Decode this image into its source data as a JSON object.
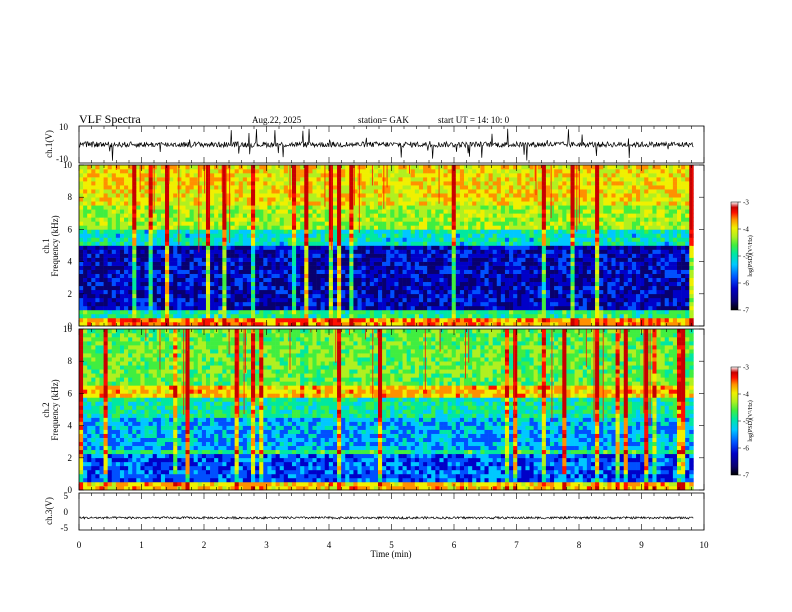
{
  "header": {
    "title": "VLF  Spectra",
    "date": "Aug.22, 2025",
    "station": "station= GAK",
    "start_ut": "start  UT  =    14: 10: 0"
  },
  "colors": {
    "colormap": [
      "#08006e",
      "#0000c8",
      "#0050ff",
      "#00c8ff",
      "#00e8a0",
      "#40ee40",
      "#b0f020",
      "#f0f000",
      "#ff9000",
      "#ff1000",
      "#c80000",
      "#ffffff"
    ],
    "trace": "#000000"
  },
  "chart_data": [
    {
      "type": "line",
      "name": "ch1-waveform",
      "ylabel": "ch.1(V)",
      "ylim": [
        -10,
        10
      ],
      "yticks": [
        "10",
        "-10"
      ],
      "xlim": [
        0,
        10
      ],
      "data_end_min": 9.83,
      "baseline": 0
    },
    {
      "type": "heatmap",
      "name": "ch1-spectrogram",
      "ylabel": "ch.1\nFrequency  (kHz)",
      "ylabel_lines": [
        "ch.1",
        "Frequency  (kHz)"
      ],
      "ylim": [
        0,
        10
      ],
      "yticks": [
        "0",
        "2",
        "4",
        "6",
        "8",
        "10"
      ],
      "xlim": [
        0,
        10
      ],
      "data_end_min": 9.83,
      "colorbar": {
        "label": "log(PSD)(V²/Hz)",
        "range": [
          -7,
          -3
        ],
        "ticks": [
          "-3",
          "-4",
          "-5",
          "-6",
          "-7"
        ]
      }
    },
    {
      "type": "heatmap",
      "name": "ch2-spectrogram",
      "ylabel": "ch.2\nFrequency  (kHz)",
      "ylabel_lines": [
        "ch.2",
        "Frequency  (kHz)"
      ],
      "ylim": [
        0,
        10
      ],
      "yticks": [
        "0",
        "2",
        "4",
        "6",
        "8",
        "10"
      ],
      "xlim": [
        0,
        10
      ],
      "data_end_min": 9.83,
      "colorbar": {
        "label": "log(PSD)(V²/Hz)",
        "range": [
          -7,
          -3
        ],
        "ticks": [
          "-3",
          "-4",
          "-5",
          "-6",
          "-7"
        ]
      }
    },
    {
      "type": "line",
      "name": "ch3-waveform",
      "ylabel": "ch.3(V)",
      "ylim": [
        -5,
        5
      ],
      "yticks": [
        "5",
        "0",
        "-5"
      ],
      "xlim": [
        0,
        10
      ],
      "data_end_min": 9.83,
      "baseline": -1.7
    }
  ],
  "x_axis": {
    "label": "Time  (min)",
    "ticks": [
      "0",
      "1",
      "2",
      "3",
      "4",
      "5",
      "6",
      "7",
      "8",
      "9",
      "10"
    ]
  }
}
